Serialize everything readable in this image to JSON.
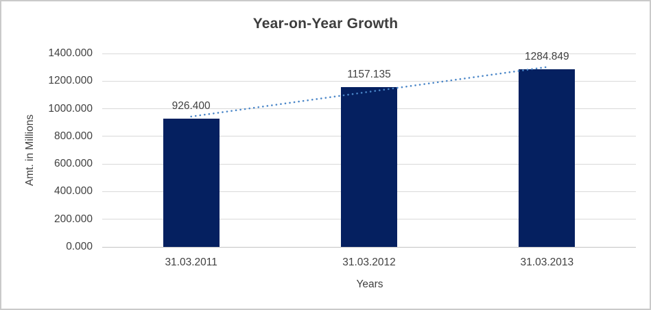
{
  "chart_data": {
    "type": "bar",
    "title": "Year-on-Year Growth",
    "xlabel": "Years",
    "ylabel": "Amt. in Millions",
    "categories": [
      "31.03.2011",
      "31.03.2012",
      "31.03.2013"
    ],
    "values": [
      926.4,
      1157.135,
      1284.849
    ],
    "data_labels": [
      "926.400",
      "1157.135",
      "1284.849"
    ],
    "ylim": [
      0,
      1400
    ],
    "ytick_step": 200,
    "ytick_labels": [
      "0.000",
      "200.000",
      "400.000",
      "600.000",
      "800.000",
      "1000.000",
      "1200.000",
      "1400.000"
    ],
    "grid": true,
    "legend": "none",
    "trendline": {
      "type": "linear",
      "style": "dotted"
    },
    "colors": {
      "bar": "#052060",
      "trendline": "#4a86c8",
      "gridline": "#d9d9d9",
      "axis_line": "#c3c3c3",
      "text": "#404040",
      "title_text": "#3d3d3d",
      "background": "#ffffff",
      "border": "#cacaca"
    }
  }
}
